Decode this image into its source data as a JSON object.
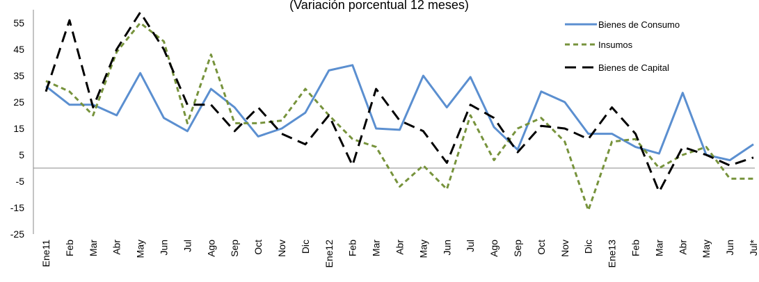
{
  "chart_data": {
    "type": "line",
    "subtitle": "(Variación porcentual 12 meses)",
    "categories": [
      "Ene11",
      "Feb",
      "Mar",
      "Abr",
      "May",
      "Jun",
      "Jul",
      "Ago",
      "Sep",
      "Oct",
      "Nov",
      "Dic",
      "Ene12",
      "Feb",
      "Mar",
      "Abr",
      "May",
      "Jun",
      "Jul",
      "Ago",
      "Sep",
      "Oct",
      "Nov",
      "Dic",
      "Ene13",
      "Feb",
      "Mar",
      "Abr",
      "May",
      "Jun",
      "Jul*"
    ],
    "series": [
      {
        "name": "Bienes de Consumo",
        "color": "#5b8fd0",
        "dash": "solid",
        "values": [
          31,
          24,
          24,
          20,
          36,
          19,
          14,
          30,
          23,
          12,
          15,
          21,
          37,
          39,
          15,
          14.5,
          35,
          23,
          34.5,
          15.5,
          7,
          29,
          25,
          13,
          13,
          8,
          5.5,
          28.5,
          5,
          3,
          9
        ]
      },
      {
        "name": "Insumos",
        "color": "#77933c",
        "dash": "short",
        "values": [
          33,
          29,
          20,
          44,
          55,
          48,
          17,
          43,
          17,
          17,
          18,
          30,
          20,
          11,
          8,
          -7,
          1,
          -8,
          20,
          3,
          15,
          19,
          10,
          -16,
          10,
          11,
          0,
          5,
          8,
          -4,
          -4
        ]
      },
      {
        "name": "Bienes de Capital",
        "color": "#000000",
        "dash": "long",
        "values": [
          29,
          56,
          23,
          45,
          59,
          45,
          24,
          24,
          14,
          23,
          13,
          9,
          20,
          1,
          30,
          18,
          14,
          2,
          24,
          19,
          6,
          16,
          15,
          11,
          23,
          13,
          -9,
          8,
          5,
          1,
          4
        ]
      }
    ],
    "ylim": [
      -25,
      60
    ],
    "yticks": [
      -25,
      -15,
      -5,
      5,
      15,
      25,
      35,
      45,
      55
    ],
    "grid": false,
    "legend": "top-right"
  }
}
